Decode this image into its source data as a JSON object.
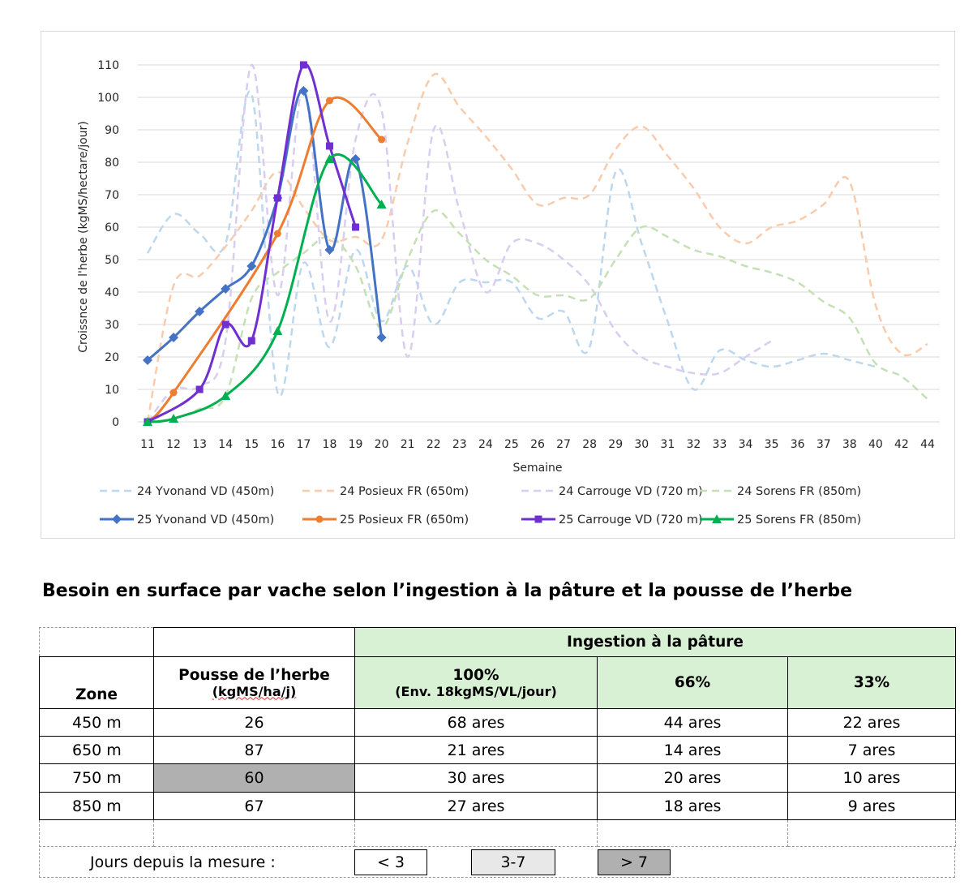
{
  "chart_data": {
    "type": "line",
    "xlabel": "Semaine",
    "ylabel": "Croissnce de l'herbe (kgMS/hectare/jour)",
    "ylim": [
      0,
      110
    ],
    "yticks": [
      0,
      10,
      20,
      30,
      40,
      50,
      60,
      70,
      80,
      90,
      100,
      110
    ],
    "categories": [
      "11",
      "12",
      "13",
      "14",
      "15",
      "16",
      "17",
      "18",
      "19",
      "20",
      "21",
      "22",
      "23",
      "24",
      "25",
      "26",
      "27",
      "28",
      "29",
      "30",
      "31",
      "32",
      "33",
      "34",
      "35",
      "36",
      "37",
      "38",
      "40",
      "42",
      "44"
    ],
    "grid": "horizontal",
    "legend_position": "bottom",
    "series": [
      {
        "name": "24 Yvonand VD (450m)",
        "style": "dashed",
        "color": "#bdd7ee",
        "marker": "none",
        "values": [
          52,
          64,
          58,
          55,
          101,
          9,
          49,
          23,
          53,
          31,
          48,
          30,
          43,
          43,
          43,
          32,
          34,
          23,
          77,
          55,
          31,
          10,
          22,
          19,
          17,
          19,
          21,
          19,
          17,
          null,
          null
        ]
      },
      {
        "name": "24 Posieux FR (650m)",
        "style": "dashed",
        "color": "#f8cbad",
        "marker": "none",
        "values": [
          0,
          42,
          45,
          54,
          65,
          77,
          66,
          56,
          57,
          56,
          86,
          107,
          97,
          88,
          78,
          67,
          69,
          70,
          84,
          91,
          82,
          72,
          60,
          55,
          60,
          62,
          67,
          74,
          36,
          21,
          24
        ]
      },
      {
        "name": "24 Carrouge VD (720 m)",
        "style": "dashed",
        "color": "#d9cdf0",
        "marker": "none",
        "values": [
          0,
          10,
          11,
          25,
          110,
          39,
          103,
          31,
          87,
          96,
          20,
          90,
          65,
          40,
          55,
          55,
          50,
          42,
          28,
          20,
          17,
          15,
          15,
          20,
          25,
          null,
          null,
          null,
          null,
          null,
          null
        ]
      },
      {
        "name": "24 Sorens FR (850m)",
        "style": "dashed",
        "color": "#c5e0b4",
        "marker": "none",
        "values": [
          0,
          1,
          4,
          8,
          38,
          46,
          52,
          57,
          48,
          29,
          50,
          65,
          58,
          50,
          45,
          39,
          39,
          38,
          50,
          60,
          57,
          53,
          51,
          48,
          46,
          43,
          37,
          32,
          18,
          14,
          7
        ]
      },
      {
        "name": "25 Yvonand VD (450m)",
        "style": "solid",
        "color": "#4472c4",
        "marker": "diamond",
        "values": [
          19,
          26,
          34,
          41,
          48,
          69,
          102,
          53,
          81,
          26,
          null,
          null,
          null,
          null,
          null,
          null,
          null,
          null,
          null,
          null,
          null,
          null,
          null,
          null,
          null,
          null,
          null,
          null,
          null,
          null,
          null
        ]
      },
      {
        "name": "25 Posieux FR (650m)",
        "style": "solid",
        "color": "#ed7d31",
        "marker": "circle",
        "values": [
          0,
          9,
          null,
          null,
          null,
          58,
          null,
          99,
          null,
          87,
          null,
          null,
          null,
          null,
          null,
          null,
          null,
          null,
          null,
          null,
          null,
          null,
          null,
          null,
          null,
          null,
          null,
          null,
          null,
          null,
          null
        ]
      },
      {
        "name": "25 Carrouge VD (720 m)",
        "style": "solid",
        "color": "#7030d0",
        "marker": "square",
        "values": [
          0,
          null,
          10,
          30,
          25,
          69,
          110,
          85,
          60,
          null,
          null,
          null,
          null,
          null,
          null,
          null,
          null,
          null,
          null,
          null,
          null,
          null,
          null,
          null,
          null,
          null,
          null,
          null,
          null,
          null,
          null
        ]
      },
      {
        "name": "25 Sorens FR (850m)",
        "style": "solid",
        "color": "#00b050",
        "marker": "triangle",
        "values": [
          0,
          1,
          null,
          8,
          null,
          28,
          null,
          81,
          null,
          67,
          null,
          null,
          null,
          null,
          null,
          null,
          null,
          null,
          null,
          null,
          null,
          null,
          null,
          null,
          null,
          null,
          null,
          null,
          null,
          null,
          null
        ]
      }
    ]
  },
  "section_title": "Besoin en surface par vache selon l’ingestion à la pâture et la pousse de l’herbe",
  "table": {
    "group_header": "Ingestion à la pâture",
    "col_zone": "Zone",
    "col_pousse_1": "Pousse de l’herbe",
    "col_pousse_2": "(kgMS/ha/j)",
    "col_100_1": "100%",
    "col_100_2": "(Env. 18kgMS/VL/jour)",
    "col_66": "66%",
    "col_33": "33%",
    "rows": [
      {
        "zone": "450 m",
        "pousse": "26",
        "a100": "68 ares",
        "a66": "44 ares",
        "a33": "22 ares",
        "age": "< 3"
      },
      {
        "zone": "650 m",
        "pousse": "87",
        "a100": "21 ares",
        "a66": "14 ares",
        "a33": "7 ares",
        "age": "< 3"
      },
      {
        "zone": "750 m",
        "pousse": "60",
        "a100": "30 ares",
        "a66": "20 ares",
        "a33": "10 ares",
        "age": "> 7"
      },
      {
        "zone": "850 m",
        "pousse": "67",
        "a100": "27 ares",
        "a66": "18 ares",
        "a33": "9 ares",
        "age": "< 3"
      }
    ]
  },
  "days_legend": {
    "label": "Jours depuis la mesure :",
    "items": [
      {
        "label": "< 3",
        "color": "#ffffff"
      },
      {
        "label": "3-7",
        "color": "#e8e8e8"
      },
      {
        "label": "> 7",
        "color": "#b0b0b0"
      }
    ]
  }
}
